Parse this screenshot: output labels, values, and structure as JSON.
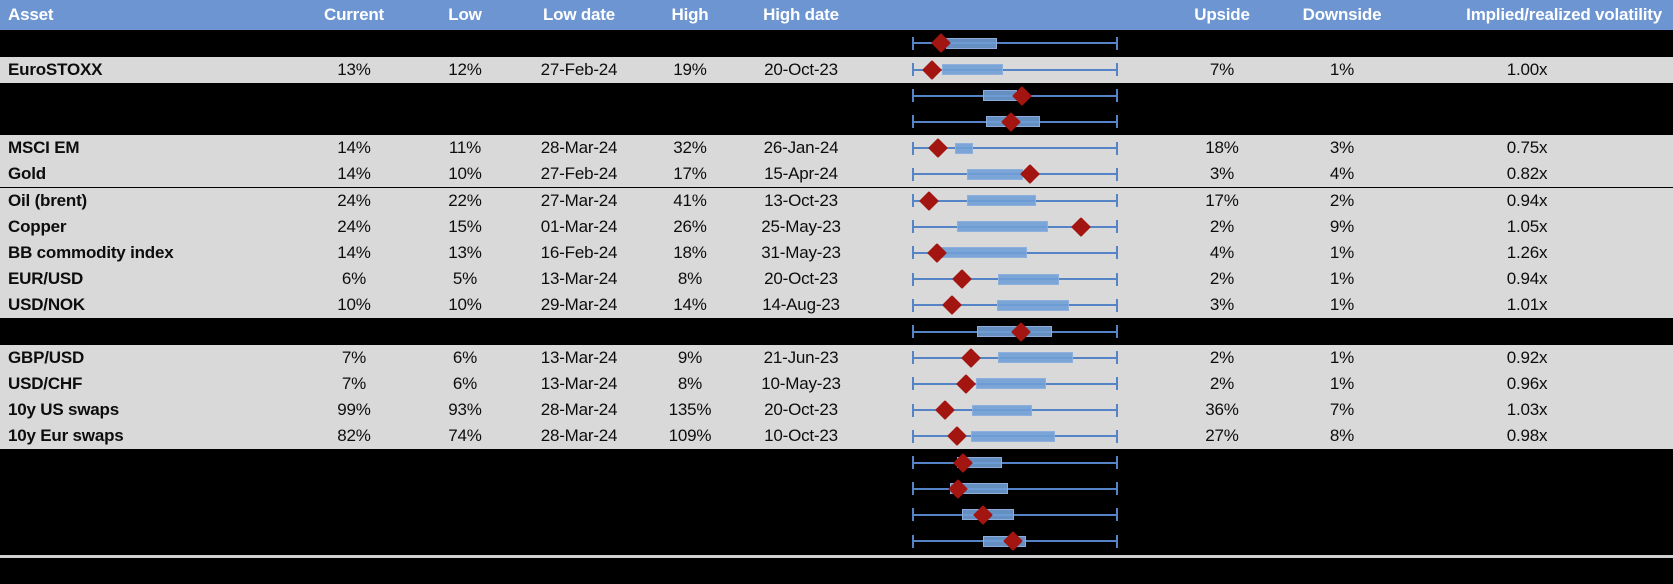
{
  "header": {
    "asset": "Asset",
    "current": "Current",
    "low": "Low",
    "low_date": "Low date",
    "high": "High",
    "high_date": "High date",
    "upside": "Upside",
    "downside": "Downside",
    "impl_vol": "Implied/realized volatility"
  },
  "colors": {
    "header_bg": "#6C95D1",
    "row_gray": "#D9D9D9",
    "row_black": "#000000",
    "whisker_blue": "#5584C6",
    "box_blue": "#709ED6",
    "marker_red": "#A31510",
    "divider_gray": "#CFCFCF",
    "header_text": "#FFFFFF",
    "body_text": "#0D0D0D"
  },
  "chart_data": {
    "type": "table-with-box-whisker-rows",
    "title": "",
    "x_axis_visible": false,
    "note": "Each row shows a horizontal box-and-whisker range plot with a red diamond marker; whisker spans full range (0=low end, 1=high end), box and marker given as fractions of that span.",
    "rows": [
      {
        "kind": "spacer",
        "label": null,
        "box": {
          "whisker_low": 0,
          "box_low": 0.162,
          "box_high": 0.412,
          "marker": 0.137,
          "whisker_high": 1
        }
      },
      {
        "kind": "data",
        "label": "EuroSTOXX",
        "current": "13%",
        "low": "12%",
        "low_date": "27-Feb-24",
        "high": "19%",
        "high_date": "20-Oct-23",
        "upside": "7%",
        "downside": "1%",
        "impl_vol": "1.00x",
        "box": {
          "whisker_low": 0,
          "box_low": 0.142,
          "box_high": 0.441,
          "marker": 0.093,
          "whisker_high": 1
        }
      },
      {
        "kind": "spacer",
        "label": null,
        "box": {
          "whisker_low": 0,
          "box_low": 0.343,
          "box_high": 0.51,
          "marker": 0.534,
          "whisker_high": 1
        }
      },
      {
        "kind": "spacer",
        "label": null,
        "box": {
          "whisker_low": 0,
          "box_low": 0.358,
          "box_high": 0.623,
          "marker": 0.48,
          "whisker_high": 1
        }
      },
      {
        "kind": "data",
        "label": "MSCI EM",
        "current": "14%",
        "low": "11%",
        "low_date": "28-Mar-24",
        "high": "32%",
        "high_date": "26-Jan-24",
        "upside": "18%",
        "downside": "3%",
        "impl_vol": "0.75x",
        "box": {
          "whisker_low": 0,
          "box_low": 0.206,
          "box_high": 0.294,
          "marker": 0.123,
          "whisker_high": 1
        }
      },
      {
        "kind": "data",
        "label": "Gold",
        "current": "14%",
        "low": "10%",
        "low_date": "27-Feb-24",
        "high": "17%",
        "high_date": "15-Apr-24",
        "upside": "3%",
        "downside": "4%",
        "impl_vol": "0.82x",
        "box": {
          "whisker_low": 0,
          "box_low": 0.265,
          "box_high": 0.539,
          "marker": 0.574,
          "whisker_high": 1
        }
      },
      {
        "kind": "data",
        "label": "Oil (brent)",
        "current": "24%",
        "low": "22%",
        "low_date": "27-Mar-24",
        "high": "41%",
        "high_date": "13-Oct-23",
        "upside": "17%",
        "downside": "2%",
        "impl_vol": "0.94x",
        "box": {
          "whisker_low": 0,
          "box_low": 0.265,
          "box_high": 0.603,
          "marker": 0.078,
          "whisker_high": 1
        }
      },
      {
        "kind": "data",
        "label": "Copper",
        "current": "24%",
        "low": "15%",
        "low_date": "01-Mar-24",
        "high": "26%",
        "high_date": "25-May-23",
        "upside": "2%",
        "downside": "9%",
        "impl_vol": "1.05x",
        "box": {
          "whisker_low": 0,
          "box_low": 0.216,
          "box_high": 0.662,
          "marker": 0.824,
          "whisker_high": 1
        }
      },
      {
        "kind": "data",
        "label": "BB commodity index",
        "current": "14%",
        "low": "13%",
        "low_date": "16-Feb-24",
        "high": "18%",
        "high_date": "31-May-23",
        "upside": "4%",
        "downside": "1%",
        "impl_vol": "1.26x",
        "box": {
          "whisker_low": 0,
          "box_low": 0.123,
          "box_high": 0.559,
          "marker": 0.118,
          "whisker_high": 1
        }
      },
      {
        "kind": "data",
        "label": "EUR/USD",
        "current": "6%",
        "low": "5%",
        "low_date": "13-Mar-24",
        "high": "8%",
        "high_date": "20-Oct-23",
        "upside": "2%",
        "downside": "1%",
        "impl_vol": "0.94x",
        "box": {
          "whisker_low": 0,
          "box_low": 0.417,
          "box_high": 0.716,
          "marker": 0.24,
          "whisker_high": 1
        }
      },
      {
        "kind": "data",
        "label": "USD/NOK",
        "current": "10%",
        "low": "10%",
        "low_date": "29-Mar-24",
        "high": "14%",
        "high_date": "14-Aug-23",
        "upside": "3%",
        "downside": "1%",
        "impl_vol": "1.01x",
        "box": {
          "whisker_low": 0,
          "box_low": 0.412,
          "box_high": 0.765,
          "marker": 0.191,
          "whisker_high": 1
        }
      },
      {
        "kind": "spacer",
        "label": null,
        "box": {
          "whisker_low": 0,
          "box_low": 0.314,
          "box_high": 0.681,
          "marker": 0.529,
          "whisker_high": 1
        }
      },
      {
        "kind": "data",
        "label": "GBP/USD",
        "current": "7%",
        "low": "6%",
        "low_date": "13-Mar-24",
        "high": "9%",
        "high_date": "21-Jun-23",
        "upside": "2%",
        "downside": "1%",
        "impl_vol": "0.92x",
        "box": {
          "whisker_low": 0,
          "box_low": 0.417,
          "box_high": 0.784,
          "marker": 0.284,
          "whisker_high": 1
        }
      },
      {
        "kind": "data",
        "label": "USD/CHF",
        "current": "7%",
        "low": "6%",
        "low_date": "13-Mar-24",
        "high": "8%",
        "high_date": "10-May-23",
        "upside": "2%",
        "downside": "1%",
        "impl_vol": "0.96x",
        "box": {
          "whisker_low": 0,
          "box_low": 0.309,
          "box_high": 0.652,
          "marker": 0.26,
          "whisker_high": 1
        }
      },
      {
        "kind": "data",
        "label": "10y US swaps",
        "current": "99%",
        "low": "93%",
        "low_date": "28-Mar-24",
        "high": "135%",
        "high_date": "20-Oct-23",
        "upside": "36%",
        "downside": "7%",
        "impl_vol": "1.03x",
        "box": {
          "whisker_low": 0,
          "box_low": 0.289,
          "box_high": 0.583,
          "marker": 0.157,
          "whisker_high": 1
        }
      },
      {
        "kind": "data",
        "label": "10y Eur swaps",
        "current": "82%",
        "low": "74%",
        "low_date": "28-Mar-24",
        "high": "109%",
        "high_date": "10-Oct-23",
        "upside": "27%",
        "downside": "8%",
        "impl_vol": "0.98x",
        "box": {
          "whisker_low": 0,
          "box_low": 0.284,
          "box_high": 0.696,
          "marker": 0.216,
          "whisker_high": 1
        }
      },
      {
        "kind": "spacer",
        "label": null,
        "box": {
          "whisker_low": 0,
          "box_low": 0.216,
          "box_high": 0.436,
          "marker": 0.245,
          "whisker_high": 1
        }
      },
      {
        "kind": "spacer",
        "label": null,
        "box": {
          "whisker_low": 0,
          "box_low": 0.181,
          "box_high": 0.466,
          "marker": 0.221,
          "whisker_high": 1
        }
      },
      {
        "kind": "spacer",
        "label": null,
        "box": {
          "whisker_low": 0,
          "box_low": 0.24,
          "box_high": 0.495,
          "marker": 0.343,
          "whisker_high": 1
        }
      },
      {
        "kind": "spacer",
        "label": null,
        "box": {
          "whisker_low": 0,
          "box_low": 0.343,
          "box_high": 0.554,
          "marker": 0.49,
          "whisker_high": 1
        }
      }
    ]
  }
}
